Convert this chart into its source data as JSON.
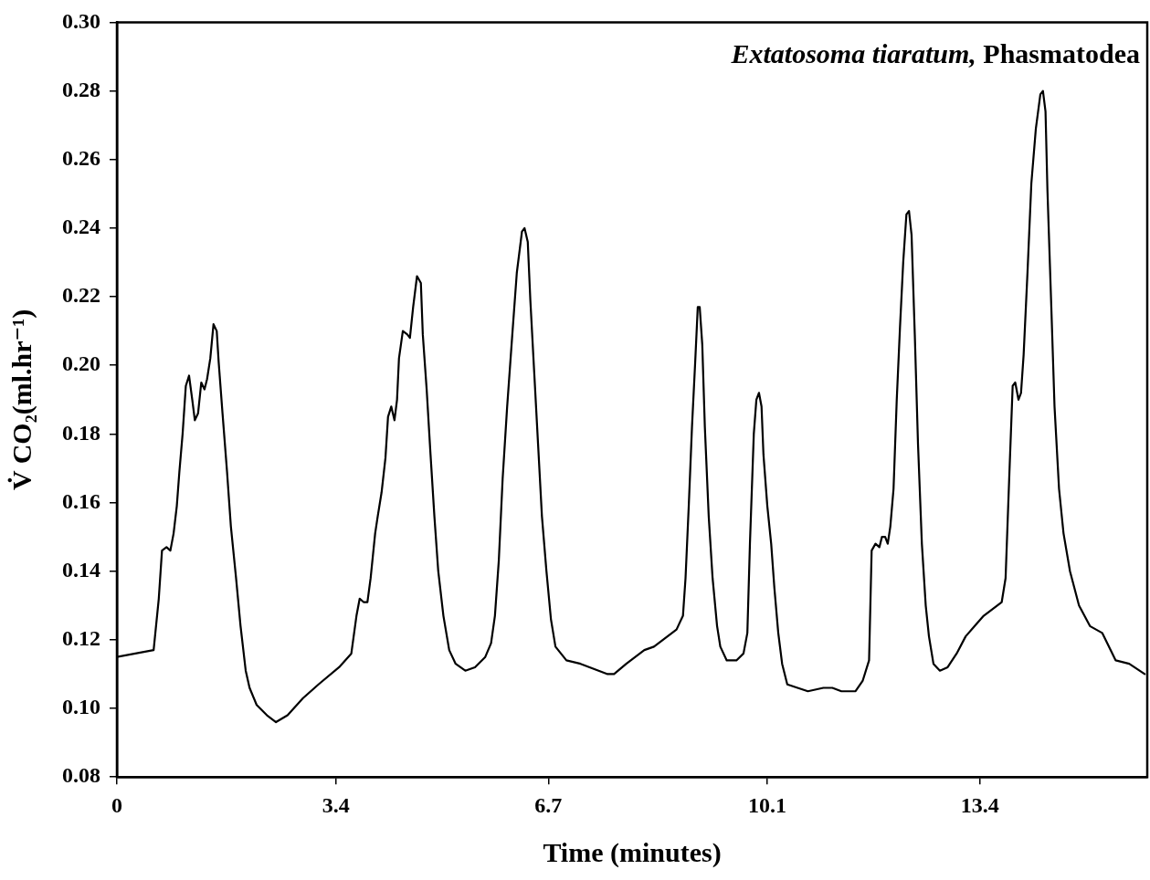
{
  "chart_data": {
    "type": "line",
    "title": "Extatosoma tiaratum, Phasmatodea",
    "xlabel": "Time (minutes)",
    "ylabel": "V̇ CO₂(ml.hr⁻¹)",
    "xlim": [
      0,
      16
    ],
    "xticks": [
      0,
      3.4,
      6.7,
      10.1,
      13.4
    ],
    "ylim": [
      0.08,
      0.3
    ],
    "yticks": [
      {
        "value": 0.08,
        "label": "0.08"
      },
      {
        "value": 0.1,
        "label": "0.10"
      },
      {
        "value": 0.12,
        "label": "0.12"
      },
      {
        "value": 0.14,
        "label": "0.14"
      },
      {
        "value": 0.16,
        "label": "0.16"
      },
      {
        "value": 0.18,
        "label": "0.18"
      },
      {
        "value": 0.2,
        "label": "0.20"
      },
      {
        "value": 0.22,
        "label": "0.22"
      },
      {
        "value": 0.24,
        "label": "0.24"
      },
      {
        "value": 0.26,
        "label": "0.26"
      },
      {
        "value": 0.28,
        "label": "0.28"
      },
      {
        "value": 0.3,
        "label": "0.30"
      }
    ],
    "grid": false,
    "legend": false,
    "marker": "none",
    "line_style": "solid",
    "series": [
      {
        "color": "#000000",
        "x": [
          0,
          0.57,
          0.65,
          0.7,
          0.77,
          0.83,
          0.88,
          0.93,
          0.97,
          1.02,
          1.07,
          1.12,
          1.17,
          1.21,
          1.26,
          1.31,
          1.36,
          1.4,
          1.45,
          1.5,
          1.55,
          1.58,
          1.64,
          1.71,
          1.77,
          1.85,
          1.92,
          2,
          2.06,
          2.17,
          2.33,
          2.47,
          2.65,
          2.89,
          3.13,
          3.45,
          3.64,
          3.72,
          3.77,
          3.83,
          3.89,
          3.94,
          4.01,
          4.05,
          4.11,
          4.17,
          4.21,
          4.26,
          4.31,
          4.35,
          4.38,
          4.44,
          4.51,
          4.55,
          4.6,
          4.66,
          4.72,
          4.75,
          4.81,
          4.87,
          4.93,
          4.99,
          5.07,
          5.16,
          5.26,
          5.41,
          5.56,
          5.72,
          5.81,
          5.87,
          5.93,
          5.99,
          6.06,
          6.14,
          6.21,
          6.29,
          6.33,
          6.38,
          6.42,
          6.48,
          6.54,
          6.6,
          6.67,
          6.74,
          6.81,
          6.98,
          7.2,
          7.48,
          7.62,
          7.72,
          7.91,
          8.19,
          8.34,
          8.55,
          8.69,
          8.79,
          8.83,
          8.88,
          8.93,
          8.98,
          9.02,
          9.05,
          9.09,
          9.13,
          9.19,
          9.25,
          9.32,
          9.37,
          9.47,
          9.62,
          9.73,
          9.79,
          9.83,
          9.89,
          9.93,
          9.97,
          10.01,
          10.04,
          10.1,
          10.16,
          10.21,
          10.27,
          10.33,
          10.41,
          10.73,
          10.97,
          11.11,
          11.25,
          11.47,
          11.58,
          11.68,
          11.72,
          11.78,
          11.84,
          11.88,
          11.93,
          11.97,
          12.01,
          12.06,
          12.11,
          12.16,
          12.21,
          12.26,
          12.3,
          12.34,
          12.39,
          12.44,
          12.5,
          12.56,
          12.61,
          12.68,
          12.78,
          12.9,
          13.04,
          13.18,
          13.32,
          13.46,
          13.74,
          13.8,
          13.86,
          13.91,
          13.95,
          14,
          14.04,
          14.08,
          14.14,
          14.2,
          14.27,
          14.34,
          14.38,
          14.42,
          14.45,
          14.51,
          14.56,
          14.63,
          14.7,
          14.8,
          14.94,
          15.11,
          15.3,
          15.51,
          15.72,
          15.96
        ],
        "values": [
          0.115,
          0.117,
          0.132,
          0.146,
          0.147,
          0.146,
          0.151,
          0.159,
          0.169,
          0.18,
          0.194,
          0.197,
          0.19,
          0.184,
          0.186,
          0.195,
          0.193,
          0.196,
          0.202,
          0.212,
          0.21,
          0.201,
          0.186,
          0.169,
          0.153,
          0.138,
          0.124,
          0.111,
          0.106,
          0.101,
          0.098,
          0.096,
          0.098,
          0.103,
          0.107,
          0.112,
          0.116,
          0.127,
          0.132,
          0.131,
          0.131,
          0.138,
          0.151,
          0.156,
          0.163,
          0.173,
          0.185,
          0.188,
          0.184,
          0.19,
          0.202,
          0.21,
          0.209,
          0.208,
          0.217,
          0.226,
          0.224,
          0.209,
          0.193,
          0.174,
          0.156,
          0.14,
          0.127,
          0.117,
          0.113,
          0.111,
          0.112,
          0.115,
          0.119,
          0.127,
          0.143,
          0.167,
          0.188,
          0.209,
          0.227,
          0.239,
          0.24,
          0.236,
          0.219,
          0.198,
          0.177,
          0.156,
          0.14,
          0.126,
          0.118,
          0.114,
          0.113,
          0.111,
          0.11,
          0.11,
          0.113,
          0.117,
          0.118,
          0.121,
          0.123,
          0.127,
          0.138,
          0.159,
          0.182,
          0.201,
          0.217,
          0.217,
          0.206,
          0.182,
          0.156,
          0.138,
          0.124,
          0.118,
          0.114,
          0.114,
          0.116,
          0.122,
          0.148,
          0.18,
          0.19,
          0.192,
          0.188,
          0.174,
          0.159,
          0.148,
          0.135,
          0.122,
          0.113,
          0.107,
          0.105,
          0.106,
          0.106,
          0.105,
          0.105,
          0.108,
          0.114,
          0.146,
          0.148,
          0.147,
          0.15,
          0.15,
          0.148,
          0.153,
          0.164,
          0.19,
          0.211,
          0.23,
          0.244,
          0.245,
          0.238,
          0.209,
          0.177,
          0.148,
          0.13,
          0.121,
          0.113,
          0.111,
          0.112,
          0.116,
          0.121,
          0.124,
          0.127,
          0.131,
          0.138,
          0.169,
          0.194,
          0.195,
          0.19,
          0.192,
          0.203,
          0.227,
          0.253,
          0.269,
          0.279,
          0.28,
          0.274,
          0.251,
          0.217,
          0.188,
          0.164,
          0.151,
          0.14,
          0.13,
          0.124,
          0.122,
          0.114,
          0.113,
          0.11
        ]
      }
    ]
  }
}
